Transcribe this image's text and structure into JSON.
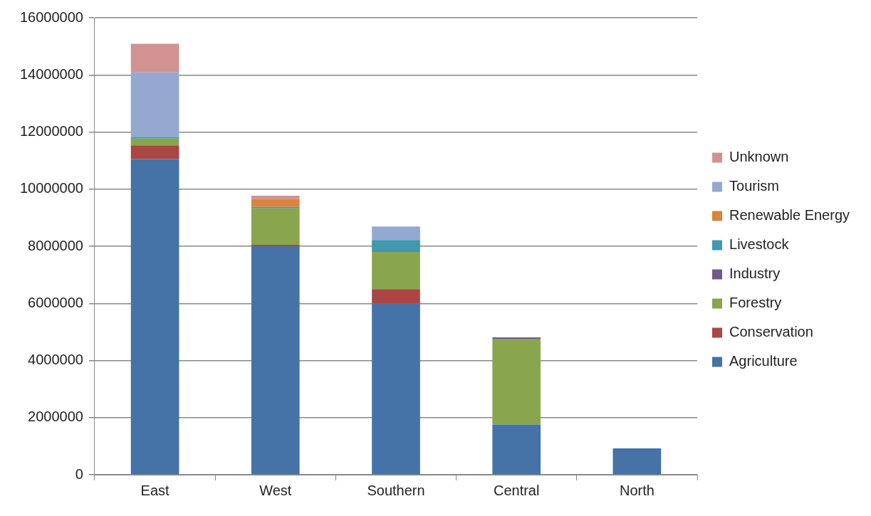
{
  "chart_data": {
    "type": "bar",
    "stacked": true,
    "categories": [
      "East",
      "West",
      "Southern",
      "Central",
      "North"
    ],
    "series": [
      {
        "name": "Agriculture",
        "color": "#4572a7",
        "values": [
          11050000,
          8000000,
          6000000,
          1760000,
          920000
        ]
      },
      {
        "name": "Conservation",
        "color": "#aa4643",
        "values": [
          480000,
          50000,
          500000,
          0,
          0
        ]
      },
      {
        "name": "Forestry",
        "color": "#89a54e",
        "values": [
          240000,
          1280000,
          1300000,
          3000000,
          0
        ]
      },
      {
        "name": "Industry",
        "color": "#71588f",
        "values": [
          0,
          0,
          0,
          50000,
          0
        ]
      },
      {
        "name": "Livestock",
        "color": "#4198af",
        "values": [
          40000,
          50000,
          420000,
          0,
          0
        ]
      },
      {
        "name": "Renewable Energy",
        "color": "#db843d",
        "values": [
          0,
          270000,
          0,
          0,
          0
        ]
      },
      {
        "name": "Tourism",
        "color": "#93a9cf",
        "values": [
          2280000,
          0,
          470000,
          0,
          0
        ]
      },
      {
        "name": "Unknown",
        "color": "#d19392",
        "values": [
          1000000,
          120000,
          null,
          0,
          0
        ]
      }
    ],
    "ylim": [
      0,
      16000000
    ],
    "yticks": [
      0,
      2000000,
      4000000,
      6000000,
      8000000,
      10000000,
      12000000,
      14000000,
      16000000
    ],
    "grid": "y",
    "legend": "right"
  }
}
